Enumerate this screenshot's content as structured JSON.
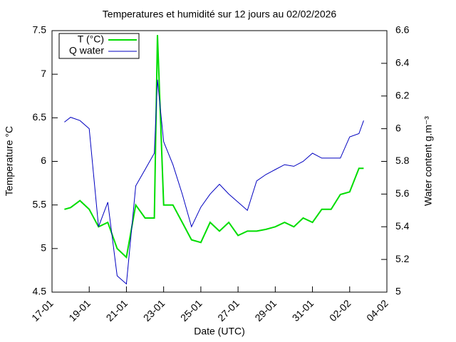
{
  "chart_data": {
    "type": "line",
    "title": "Temperatures et humidité sur 12 jours au 02/02/2026",
    "x_label": "Date (UTC)",
    "y_label": "Temperature °C",
    "y2_label": "Water content g.m⁻³",
    "x": [
      "2026-01-17T16:00",
      "2026-01-18T00:00",
      "2026-01-18T12:00",
      "2026-01-19T00:00",
      "2026-01-19T12:00",
      "2026-01-20T00:00",
      "2026-01-20T12:00",
      "2026-01-21T00:00",
      "2026-01-21T12:00",
      "2026-01-22T00:00",
      "2026-01-22T12:00",
      "2026-01-22T16:00",
      "2026-01-23T00:00",
      "2026-01-23T12:00",
      "2026-01-24T00:00",
      "2026-01-24T12:00",
      "2026-01-25T00:00",
      "2026-01-25T12:00",
      "2026-01-26T00:00",
      "2026-01-26T12:00",
      "2026-01-27T00:00",
      "2026-01-27T12:00",
      "2026-01-28T00:00",
      "2026-01-28T12:00",
      "2026-01-29T00:00",
      "2026-01-29T12:00",
      "2026-01-30T00:00",
      "2026-01-30T12:00",
      "2026-01-31T00:00",
      "2026-01-31T12:00",
      "2026-02-01T00:00",
      "2026-02-01T12:00",
      "2026-02-02T00:00",
      "2026-02-02T12:00",
      "2026-02-02T18:00"
    ],
    "series": [
      {
        "name": "T (°C)",
        "color": "#00dd00",
        "axis": "y",
        "values": [
          5.45,
          5.47,
          5.55,
          5.45,
          5.25,
          5.3,
          5.0,
          4.9,
          5.5,
          5.35,
          5.35,
          7.45,
          5.5,
          5.5,
          5.3,
          5.1,
          5.07,
          5.3,
          5.2,
          5.3,
          5.15,
          5.2,
          5.2,
          5.22,
          5.25,
          5.3,
          5.25,
          5.35,
          5.3,
          5.45,
          5.45,
          5.62,
          5.65,
          5.92,
          5.92
        ]
      },
      {
        "name": "Q water",
        "color": "#0000c0",
        "axis": "y2",
        "values": [
          6.04,
          6.07,
          6.05,
          6.0,
          5.4,
          5.55,
          5.1,
          5.05,
          5.65,
          5.75,
          5.85,
          6.3,
          5.92,
          5.78,
          5.6,
          5.4,
          5.52,
          5.6,
          5.66,
          5.6,
          5.55,
          5.5,
          5.68,
          5.72,
          5.75,
          5.78,
          5.77,
          5.8,
          5.85,
          5.82,
          5.82,
          5.82,
          5.95,
          5.97,
          6.05
        ]
      }
    ],
    "xlim": [
      "2026-01-17T00:00",
      "2026-02-04T00:00"
    ],
    "xticks": [
      {
        "value": "2026-01-17T00:00",
        "label": "17-01"
      },
      {
        "value": "2026-01-19T00:00",
        "label": "19-01"
      },
      {
        "value": "2026-01-21T00:00",
        "label": "21-01"
      },
      {
        "value": "2026-01-23T00:00",
        "label": "23-01"
      },
      {
        "value": "2026-01-25T00:00",
        "label": "25-01"
      },
      {
        "value": "2026-01-27T00:00",
        "label": "27-01"
      },
      {
        "value": "2026-01-29T00:00",
        "label": "29-01"
      },
      {
        "value": "2026-01-31T00:00",
        "label": "31-01"
      },
      {
        "value": "2026-02-02T00:00",
        "label": "02-02"
      },
      {
        "value": "2026-02-04T00:00",
        "label": "04-02"
      }
    ],
    "ylim": [
      4.5,
      7.5
    ],
    "yticks": [
      4.5,
      5,
      5.5,
      6,
      6.5,
      7,
      7.5
    ],
    "y2lim": [
      5,
      6.6
    ],
    "y2ticks": [
      5,
      5.2,
      5.4,
      5.6,
      5.8,
      6,
      6.2,
      6.4,
      6.6
    ],
    "legend": "top-left"
  }
}
